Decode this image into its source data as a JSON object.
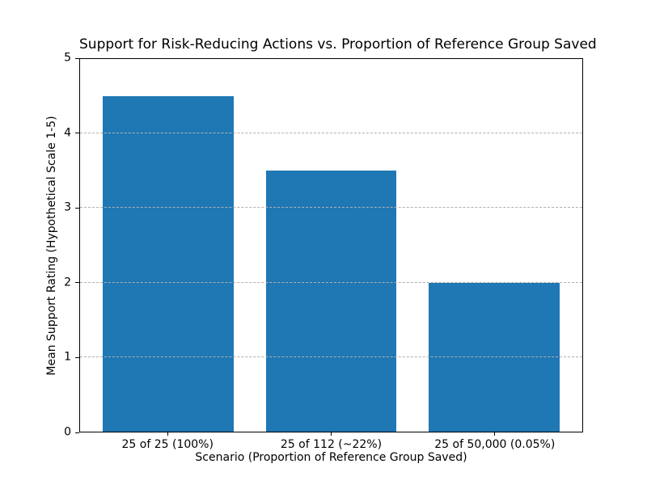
{
  "figure": {
    "background": "#ffffff"
  },
  "chart_data": {
    "type": "bar",
    "title": "Support for Risk-Reducing Actions vs. Proportion of Reference Group Saved",
    "categories": [
      "25 of 25 (100%)",
      "25 of 112 (~22%)",
      "25 of 50,000 (0.05%)"
    ],
    "values": [
      4.5,
      3.5,
      2.0
    ],
    "xlabel": "Scenario (Proportion of Reference Group Saved)",
    "ylabel": "Mean Support Rating (Hypothetical Scale 1-5)",
    "ylim": [
      0,
      5
    ],
    "yticks": [
      0,
      1,
      2,
      3,
      4,
      5
    ],
    "grid": "horizontal-dashed",
    "grid_over_bars": true,
    "legend": null,
    "bar_color": "#1f77b4",
    "grid_color": "#b0b0b0",
    "spine_color": "#000000",
    "bar_width_fraction": 0.8
  }
}
